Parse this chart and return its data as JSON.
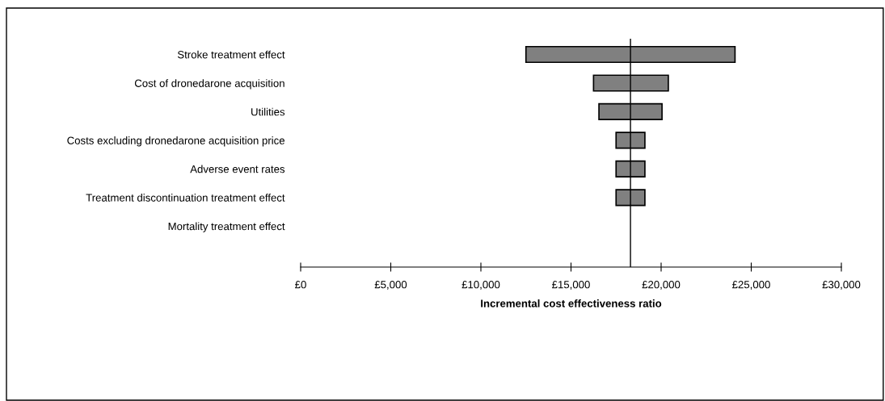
{
  "chart_data": {
    "type": "bar",
    "orientation": "horizontal",
    "categories": [
      "Stroke treatment effect",
      "Cost of dronedarone acquisition",
      "Utilities",
      "Costs excluding dronedarone acquisition price",
      "Adverse event rates",
      "Treatment discontinuation treatment effect",
      "Mortality treatment effect"
    ],
    "base": [
      12500,
      16250,
      16550,
      17500,
      17500,
      17500,
      null
    ],
    "values": [
      11600,
      4150,
      3500,
      1600,
      1600,
      1600,
      null
    ],
    "color": "#808080",
    "xlabel": "Incremental cost effectiveness ratio",
    "xlim": [
      0,
      30000
    ],
    "xticks": [
      {
        "value": 0,
        "label": "£0"
      },
      {
        "value": 5000,
        "label": "£5,000"
      },
      {
        "value": 10000,
        "label": "£10,000"
      },
      {
        "value": 15000,
        "label": "£15,000"
      },
      {
        "value": 20000,
        "label": "£20,000"
      },
      {
        "value": 25000,
        "label": "£25,000"
      },
      {
        "value": 30000,
        "label": "£30,000"
      }
    ],
    "ref_lines": [
      {
        "axis": "x",
        "value": 18300,
        "color": "#000000"
      }
    ],
    "grid": false
  }
}
